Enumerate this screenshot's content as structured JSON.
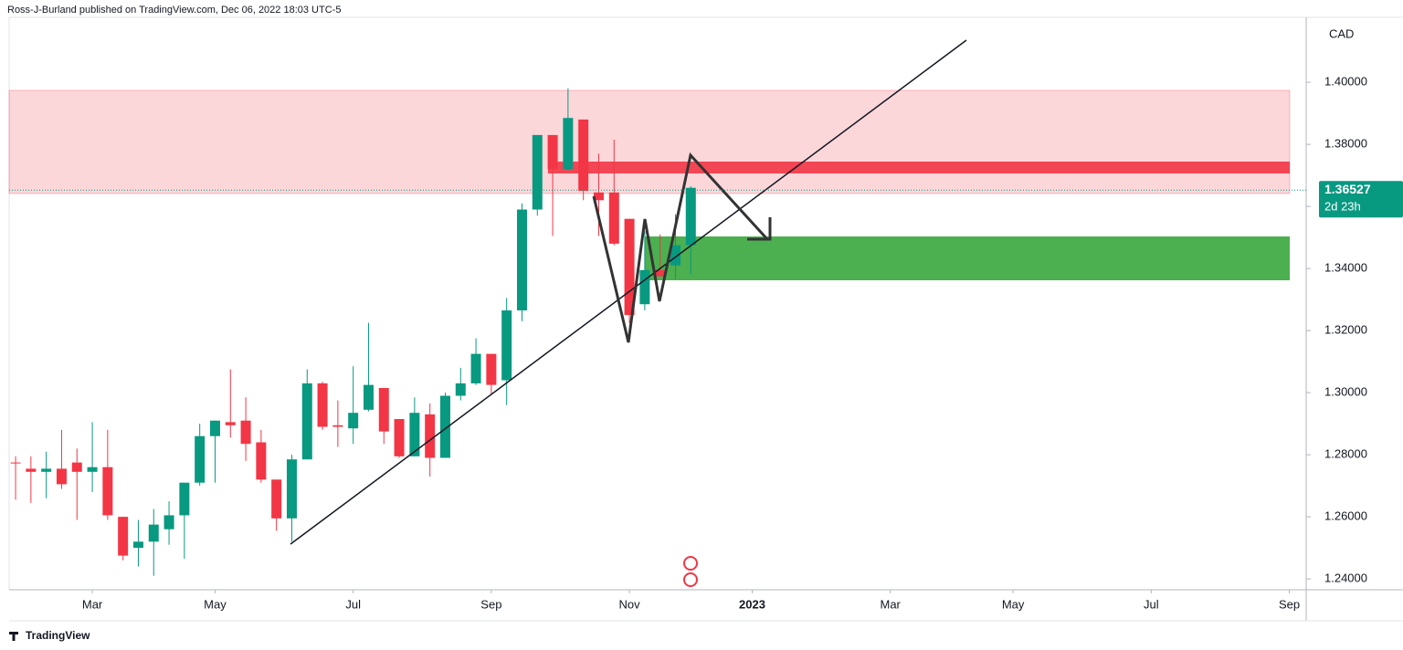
{
  "chart_data": {
    "type": "candlestick",
    "title": "Ross-J-Burland published on TradingView.com, Dec 06, 2022 18:03 UTC-5",
    "y_label": "CAD",
    "footer": "TradingView",
    "up_color": "#089981",
    "down_color": "#f23645",
    "open": [
      1.2775,
      1.2755,
      1.2745,
      1.2755,
      1.2775,
      1.2745,
      1.276,
      1.26,
      1.25,
      1.252,
      1.256,
      1.2605,
      1.271,
      1.286,
      1.2905,
      1.291,
      1.284,
      1.272,
      1.2595,
      1.2785,
      1.303,
      1.2895,
      1.2885,
      1.2945,
      1.3015,
      1.2915,
      1.2795,
      1.293,
      1.279,
      1.299,
      1.303,
      1.3125,
      1.304,
      1.3265,
      1.359,
      1.383,
      1.372,
      1.388,
      1.3645,
      1.3645,
      1.356,
      1.3285,
      1.3395,
      1.341,
      1.3475
    ],
    "high": [
      1.2795,
      1.2795,
      1.281,
      1.288,
      1.282,
      1.2905,
      1.288,
      1.26,
      1.259,
      1.2625,
      1.265,
      1.271,
      1.29,
      1.291,
      1.3075,
      1.2985,
      1.288,
      1.272,
      1.28,
      1.3075,
      1.3035,
      1.2975,
      1.3085,
      1.3225,
      1.3015,
      1.2915,
      1.2985,
      1.2965,
      1.3,
      1.308,
      1.3175,
      1.3125,
      1.3305,
      1.361,
      1.383,
      1.383,
      1.398,
      1.388,
      1.377,
      1.3815,
      1.356,
      1.352,
      1.351,
      1.3575,
      1.3665
    ],
    "low": [
      1.2655,
      1.2645,
      1.266,
      1.269,
      1.259,
      1.268,
      1.259,
      1.246,
      1.244,
      1.241,
      1.251,
      1.2465,
      1.27,
      1.271,
      1.2855,
      1.278,
      1.271,
      1.2555,
      1.252,
      1.2785,
      1.288,
      1.2825,
      1.2835,
      1.294,
      1.2835,
      1.279,
      1.2795,
      1.273,
      1.279,
      1.2975,
      1.3025,
      1.2995,
      1.296,
      1.323,
      1.357,
      1.3505,
      1.3715,
      1.362,
      1.3505,
      1.3475,
      1.3225,
      1.3265,
      1.3375,
      1.3365,
      1.338
    ],
    "close": [
      1.2772,
      1.2745,
      1.2755,
      1.2705,
      1.2745,
      1.276,
      1.2605,
      1.2475,
      1.252,
      1.2575,
      1.2605,
      1.271,
      1.286,
      1.291,
      1.2895,
      1.2835,
      1.272,
      1.2595,
      1.2785,
      1.303,
      1.289,
      1.289,
      1.2935,
      1.3025,
      1.2875,
      1.2795,
      1.2935,
      1.279,
      1.299,
      1.303,
      1.3125,
      1.3025,
      1.3265,
      1.359,
      1.383,
      1.372,
      1.3885,
      1.365,
      1.362,
      1.348,
      1.325,
      1.3395,
      1.3375,
      1.3475,
      1.366
    ],
    "last_price": 1.36527,
    "countdown": "2d 23h",
    "ylim": [
      1.2368,
      1.4265
    ],
    "yticks": [
      {
        "value": 1.24,
        "label": "1.24000"
      },
      {
        "value": 1.26,
        "label": "1.26000"
      },
      {
        "value": 1.28,
        "label": "1.28000"
      },
      {
        "value": 1.3,
        "label": "1.30000"
      },
      {
        "value": 1.32,
        "label": "1.32000"
      },
      {
        "value": 1.34,
        "label": "1.34000"
      },
      {
        "value": 1.36,
        "label": "1.36000"
      },
      {
        "value": 1.38,
        "label": "1.38000"
      },
      {
        "value": 1.4,
        "label": "1.40000"
      }
    ],
    "xlim": [
      -0.42,
      84.1
    ],
    "xticks": [
      {
        "value": 5,
        "label": "Mar"
      },
      {
        "value": 13,
        "label": "May"
      },
      {
        "value": 22,
        "label": "Jul"
      },
      {
        "value": 31,
        "label": "Sep"
      },
      {
        "value": 40,
        "label": "Nov"
      },
      {
        "value": 48,
        "label": "2023"
      },
      {
        "value": 57,
        "label": "Mar"
      },
      {
        "value": 65,
        "label": "May"
      },
      {
        "value": 74,
        "label": "Jul"
      },
      {
        "value": 83,
        "label": "Sep"
      }
    ]
  }
}
